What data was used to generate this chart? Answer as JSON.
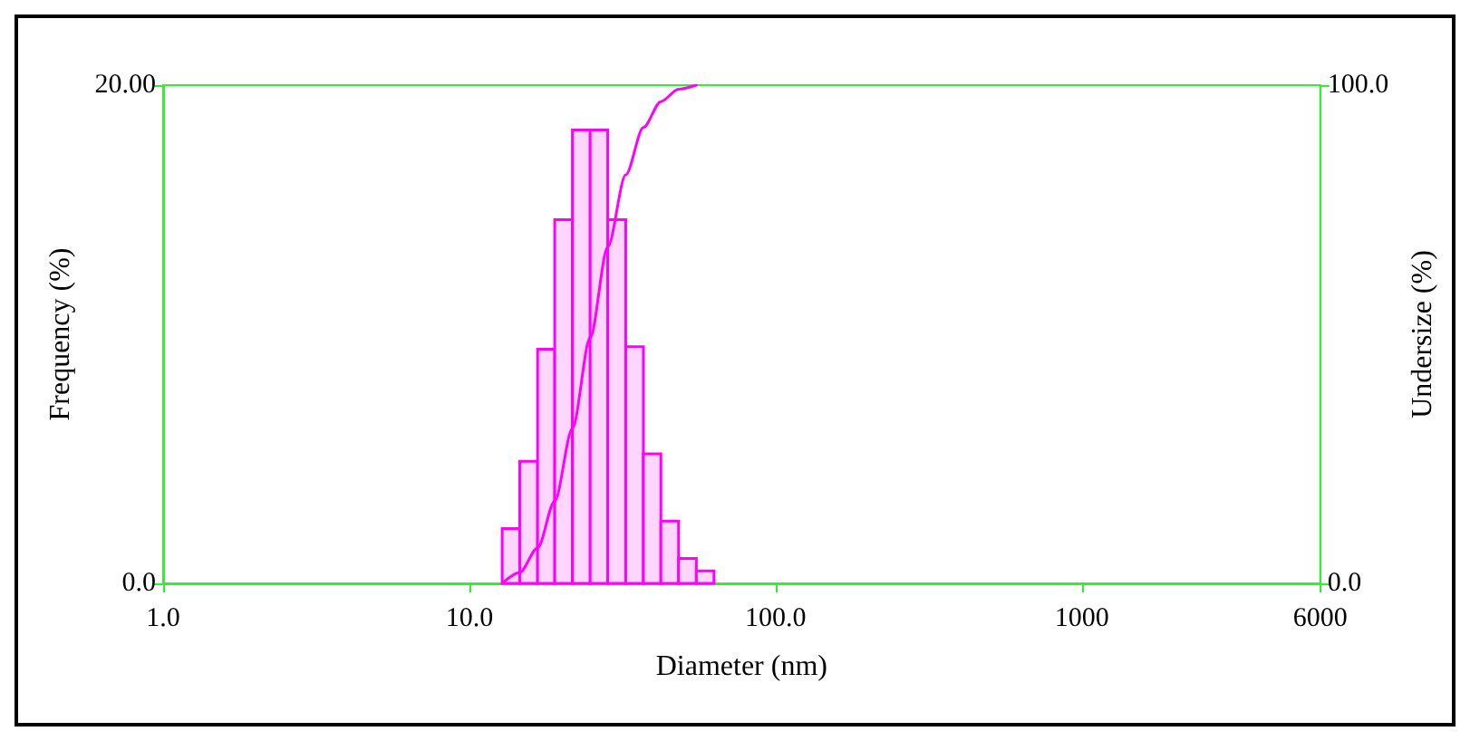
{
  "chart_data": {
    "type": "histogram",
    "xlabel": "Diameter (nm)",
    "ylabel": "Frequency (%)",
    "y2label": "Undersize (%)",
    "bins": [
      12.8,
      14.6,
      16.7,
      19.0,
      21.7,
      24.8,
      28.3,
      32.4,
      37.0,
      42.2,
      48.2,
      55.1,
      62.9
    ],
    "values": [
      2.2,
      4.9,
      9.4,
      14.6,
      18.2,
      18.2,
      14.6,
      9.5,
      5.2,
      2.5,
      1.0,
      0.5
    ],
    "color": "#ff00ff",
    "series": [
      {
        "type": "line",
        "axis": "y2",
        "color": "#ff00ff",
        "x": [
          12.8,
          14.6,
          16.7,
          19.0,
          21.7,
          24.8,
          28.3,
          32.4,
          37.0,
          42.2,
          48.2,
          55.1
        ],
        "values": [
          0,
          2.2,
          7.1,
          16.5,
          31.1,
          49.3,
          67.5,
          82,
          91.5,
          96.7,
          99.2,
          100
        ]
      }
    ],
    "log": "x",
    "xlim": [
      1,
      6000
    ],
    "ylim": [
      0,
      20
    ],
    "y2lim": [
      0,
      100
    ],
    "xticks": [
      {
        "value": 1,
        "label": "1.0"
      },
      {
        "value": 10,
        "label": "10.0"
      },
      {
        "value": 100,
        "label": "100.0"
      },
      1000,
      6000
    ],
    "yticks": [
      {
        "value": 0,
        "label": "0.0"
      },
      {
        "value": 20,
        "label": "20.00"
      }
    ],
    "y2ticks": [
      {
        "value": 0,
        "label": "0.0"
      },
      {
        "value": 100,
        "label": "100.0"
      }
    ],
    "grid": false,
    "marker": "none",
    "line_style": "solid"
  }
}
